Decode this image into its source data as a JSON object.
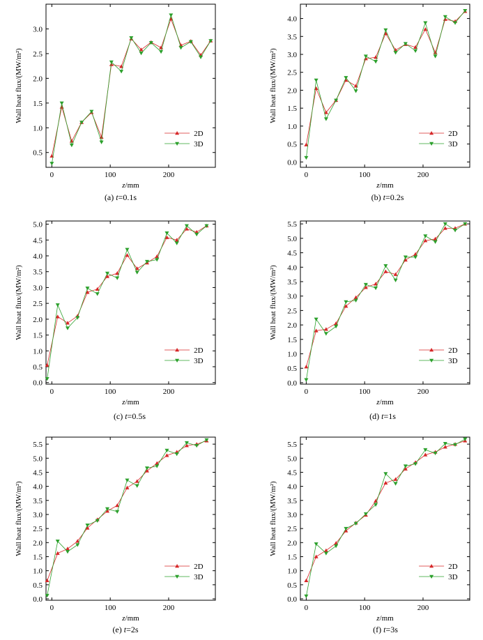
{
  "figure": {
    "xlabel": "z/mm",
    "ylabel": "Wall heat flux/(MW/m²)",
    "legend_position": "bottom-right",
    "series_styles": [
      {
        "name": "2D",
        "color": "#d62728",
        "marker": "triangle-up"
      },
      {
        "name": "3D",
        "color": "#2ca02c",
        "marker": "triangle-down"
      }
    ]
  },
  "chart_data": [
    {
      "type": "line",
      "caption": "(a) t=0.1s",
      "caption_prefix": "(a) ",
      "caption_var": "t",
      "caption_value": "=0.1s",
      "xlim": [
        -10,
        280
      ],
      "ylim": [
        0.2,
        3.5
      ],
      "xticks": [
        0,
        100,
        200
      ],
      "yticks": [
        0.5,
        1.0,
        1.5,
        2.0,
        2.5,
        3.0
      ],
      "x": [
        0,
        17,
        34,
        51,
        68,
        85,
        102,
        119,
        136,
        153,
        170,
        187,
        204,
        221,
        238,
        255,
        272
      ],
      "series": [
        {
          "name": "2D",
          "values": [
            0.43,
            1.42,
            0.73,
            1.11,
            1.31,
            0.81,
            2.28,
            2.24,
            2.8,
            2.58,
            2.73,
            2.62,
            3.2,
            2.67,
            2.75,
            2.47,
            2.76
          ]
        },
        {
          "name": "3D",
          "values": [
            0.28,
            1.5,
            0.65,
            1.11,
            1.33,
            0.71,
            2.33,
            2.14,
            2.82,
            2.51,
            2.72,
            2.54,
            3.28,
            2.62,
            2.74,
            2.43,
            2.76
          ]
        }
      ]
    },
    {
      "type": "line",
      "caption": "(b) t=0.2s",
      "caption_prefix": "(b) ",
      "caption_var": "t",
      "caption_value": "=0.2s",
      "xlim": [
        -10,
        280
      ],
      "ylim": [
        -0.15,
        4.4
      ],
      "xticks": [
        0,
        100,
        200
      ],
      "yticks": [
        0.0,
        0.5,
        1.0,
        1.5,
        2.0,
        2.5,
        3.0,
        3.5,
        4.0
      ],
      "x": [
        0,
        17,
        34,
        51,
        68,
        85,
        102,
        119,
        136,
        153,
        170,
        187,
        204,
        221,
        238,
        255,
        272
      ],
      "series": [
        {
          "name": "2D",
          "values": [
            0.48,
            2.05,
            1.38,
            1.72,
            2.28,
            2.12,
            2.88,
            2.92,
            3.58,
            3.12,
            3.28,
            3.2,
            3.7,
            3.05,
            3.98,
            3.92,
            4.2
          ]
        },
        {
          "name": "3D",
          "values": [
            0.12,
            2.28,
            1.2,
            1.72,
            2.35,
            1.98,
            2.95,
            2.8,
            3.68,
            3.05,
            3.3,
            3.1,
            3.88,
            2.95,
            4.05,
            3.88,
            4.22
          ]
        }
      ]
    },
    {
      "type": "line",
      "caption": "(c) t=0.5s",
      "caption_prefix": "(c) ",
      "caption_var": "t",
      "caption_value": "=0.5s",
      "xlim": [
        -10,
        280
      ],
      "ylim": [
        -0.05,
        5.1
      ],
      "xticks": [
        0,
        100,
        200
      ],
      "yticks": [
        0.0,
        0.5,
        1.0,
        1.5,
        2.0,
        2.5,
        3.0,
        3.5,
        4.0,
        4.5,
        5.0
      ],
      "x": [
        -8,
        10,
        27,
        44,
        61,
        78,
        95,
        112,
        129,
        146,
        163,
        180,
        197,
        214,
        231,
        248,
        265
      ],
      "series": [
        {
          "name": "2D",
          "values": [
            0.55,
            2.08,
            1.88,
            2.1,
            2.85,
            2.95,
            3.35,
            3.45,
            4.02,
            3.6,
            3.78,
            3.98,
            4.58,
            4.5,
            4.85,
            4.75,
            4.95
          ]
        },
        {
          "name": "3D",
          "values": [
            0.12,
            2.45,
            1.72,
            2.05,
            2.98,
            2.8,
            3.45,
            3.3,
            4.2,
            3.48,
            3.82,
            3.88,
            4.72,
            4.4,
            4.95,
            4.68,
            4.95
          ]
        }
      ]
    },
    {
      "type": "line",
      "caption": "(d) t=1s",
      "caption_prefix": "(d) ",
      "caption_var": "t",
      "caption_value": "=1s",
      "xlim": [
        -10,
        280
      ],
      "ylim": [
        -0.05,
        5.6
      ],
      "xticks": [
        0,
        100,
        200
      ],
      "yticks": [
        0.0,
        0.5,
        1.0,
        1.5,
        2.0,
        2.5,
        3.0,
        3.5,
        4.0,
        4.5,
        5.0,
        5.5
      ],
      "x": [
        0,
        17,
        34,
        51,
        68,
        85,
        102,
        119,
        136,
        153,
        170,
        187,
        204,
        221,
        238,
        255,
        272
      ],
      "series": [
        {
          "name": "2D",
          "values": [
            0.55,
            1.8,
            1.85,
            2.05,
            2.65,
            2.95,
            3.3,
            3.42,
            3.85,
            3.75,
            4.25,
            4.45,
            4.92,
            4.98,
            5.35,
            5.35,
            5.5
          ]
        },
        {
          "name": "3D",
          "values": [
            0.1,
            2.2,
            1.7,
            1.95,
            2.8,
            2.85,
            3.4,
            3.28,
            4.05,
            3.55,
            4.35,
            4.35,
            5.08,
            4.88,
            5.5,
            5.28,
            5.5
          ]
        }
      ]
    },
    {
      "type": "line",
      "caption": "(e) t=2s",
      "caption_prefix": "(e) ",
      "caption_var": "t",
      "caption_value": "=2s",
      "xlim": [
        -10,
        280
      ],
      "ylim": [
        -0.05,
        5.75
      ],
      "xticks": [
        0,
        100,
        200
      ],
      "yticks": [
        0.0,
        0.5,
        1.0,
        1.5,
        2.0,
        2.5,
        3.0,
        3.5,
        4.0,
        4.5,
        5.0,
        5.5
      ],
      "x": [
        -8,
        10,
        27,
        44,
        61,
        78,
        95,
        112,
        129,
        146,
        163,
        180,
        197,
        214,
        231,
        248,
        265
      ],
      "series": [
        {
          "name": "2D",
          "values": [
            0.65,
            1.62,
            1.78,
            2.05,
            2.52,
            2.82,
            3.12,
            3.32,
            3.95,
            4.18,
            4.55,
            4.82,
            5.1,
            5.22,
            5.45,
            5.5,
            5.62
          ]
        },
        {
          "name": "3D",
          "values": [
            0.12,
            2.05,
            1.68,
            1.92,
            2.62,
            2.78,
            3.2,
            3.1,
            4.22,
            4.02,
            4.65,
            4.72,
            5.28,
            5.15,
            5.55,
            5.45,
            5.65
          ]
        }
      ]
    },
    {
      "type": "line",
      "caption": "(f) t=3s",
      "caption_prefix": "(f) ",
      "caption_var": "t",
      "caption_value": "=3s",
      "xlim": [
        -10,
        280
      ],
      "ylim": [
        -0.05,
        5.75
      ],
      "xticks": [
        0,
        100,
        200
      ],
      "yticks": [
        0.0,
        0.5,
        1.0,
        1.5,
        2.0,
        2.5,
        3.0,
        3.5,
        4.0,
        4.5,
        5.0,
        5.5
      ],
      "x": [
        0,
        17,
        34,
        51,
        68,
        85,
        102,
        119,
        136,
        153,
        170,
        187,
        204,
        221,
        238,
        255,
        272
      ],
      "series": [
        {
          "name": "2D",
          "values": [
            0.65,
            1.5,
            1.72,
            1.98,
            2.42,
            2.7,
            2.98,
            3.48,
            4.12,
            4.25,
            4.62,
            4.85,
            5.12,
            5.22,
            5.4,
            5.5,
            5.62
          ]
        },
        {
          "name": "3D",
          "values": [
            0.1,
            1.95,
            1.62,
            1.88,
            2.5,
            2.68,
            3.02,
            3.35,
            4.45,
            4.1,
            4.72,
            4.8,
            5.3,
            5.18,
            5.52,
            5.48,
            5.68
          ]
        }
      ]
    }
  ]
}
